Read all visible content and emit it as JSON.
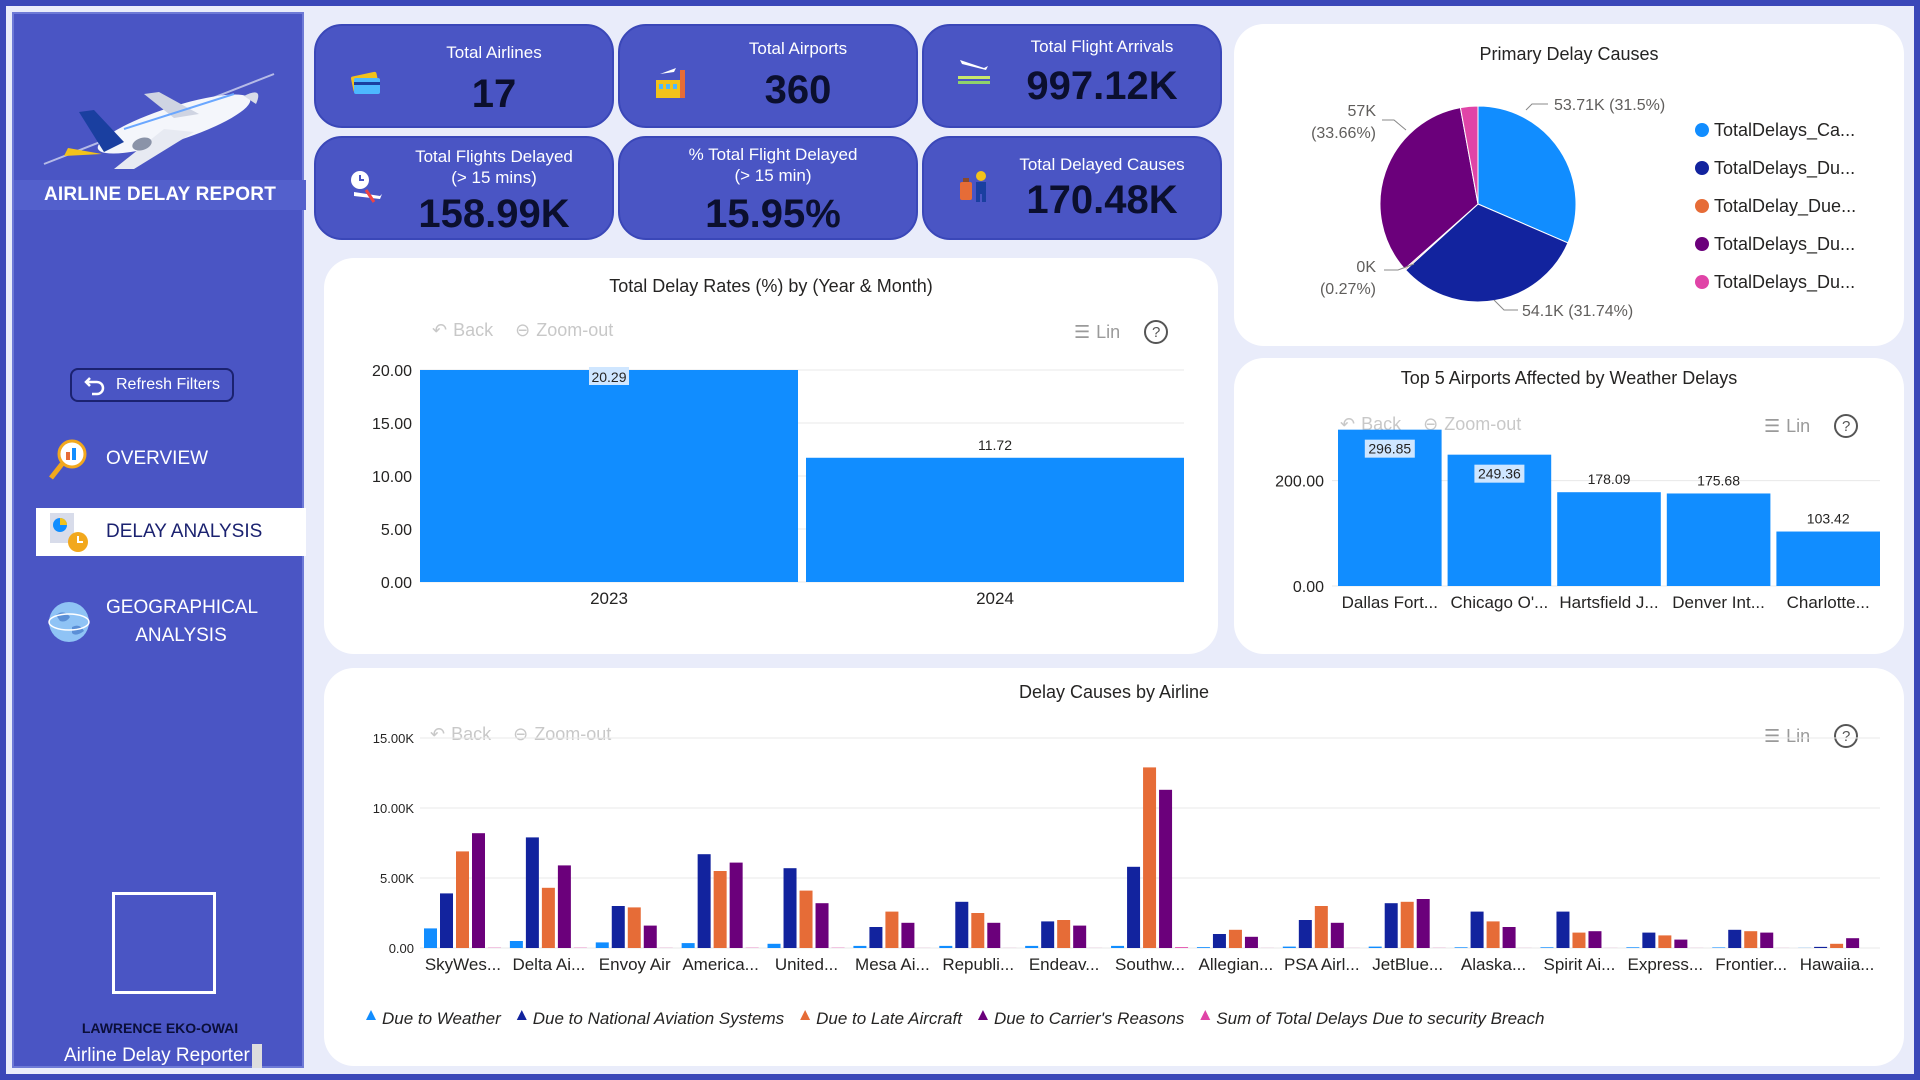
{
  "sidebar": {
    "title": "AIRLINE DELAY REPORT",
    "refresh_label": "Refresh Filters",
    "nav": [
      {
        "label": "OVERVIEW"
      },
      {
        "label": "DELAY ANALYSIS"
      },
      {
        "label": "GEOGRAPHICAL ANALYSIS"
      }
    ],
    "author_name": "LAWRENCE EKO-OWAI",
    "author_role": "Airline Delay Reporter"
  },
  "kpis": [
    {
      "label": "Total Airlines",
      "value": "17"
    },
    {
      "label": "Total Airports",
      "value": "360"
    },
    {
      "label": "Total Flight Arrivals",
      "value": "997.12K"
    },
    {
      "label": "Total Flights Delayed",
      "label2": "(> 15 mins)",
      "value": "158.99K"
    },
    {
      "label": "% Total Flight Delayed",
      "label2": "(> 15 min)",
      "value": "15.95%"
    },
    {
      "label": "Total Delayed Causes",
      "value": "170.48K"
    }
  ],
  "toolbar": {
    "back": "Back",
    "zoom": "Zoom-out",
    "lin": "Lin",
    "help": "?"
  },
  "colors": {
    "blue": "#118dff",
    "navy": "#12239e",
    "orange": "#e66c37",
    "purple": "#6b007b",
    "pink": "#e044a7"
  },
  "chart_data": [
    {
      "type": "bar",
      "title": "Total Delay Rates (%) by (Year & Month)",
      "categories": [
        "2023",
        "2024"
      ],
      "values": [
        20.29,
        11.72
      ],
      "value_labels": [
        "20.29",
        "11.72"
      ],
      "ylim": [
        0,
        20
      ],
      "yticks": [
        "0.00",
        "5.00",
        "10.00",
        "15.00",
        "20.00"
      ]
    },
    {
      "type": "pie",
      "title": "Primary Delay Causes",
      "slices": [
        {
          "legend": "TotalDelays_Ca...",
          "value": 53.71,
          "label": "53.71K (31.5%)",
          "color": "#118dff"
        },
        {
          "legend": "TotalDelays_Du...",
          "value": 54.1,
          "label": "54.1K (31.74%)",
          "color": "#12239e"
        },
        {
          "legend": "TotalDelay_Due...",
          "value": 0.4,
          "label": "0K",
          "label2": "(0.27%)",
          "color": "#e66c37"
        },
        {
          "legend": "TotalDelays_Du...",
          "value": 57.38,
          "label": "57K",
          "label2": "(33.66%)",
          "color": "#6b007b"
        },
        {
          "legend": "TotalDelays_Du...",
          "value": 4.9,
          "label": "",
          "color": "#e044a7"
        }
      ],
      "legend_position": "right"
    },
    {
      "type": "bar",
      "title": "Top 5 Airports Affected by Weather Delays",
      "categories": [
        "Dallas Fort...",
        "Chicago O'...",
        "Hartsfield J...",
        "Denver Int...",
        "Charlotte..."
      ],
      "values": [
        296.85,
        249.36,
        178.09,
        175.68,
        103.42
      ],
      "value_labels": [
        "296.85",
        "249.36",
        "178.09",
        "175.68",
        "103.42"
      ],
      "ylim": [
        0,
        300
      ],
      "yticks": [
        "0.00",
        "200.00"
      ]
    },
    {
      "type": "bar",
      "title": "Delay Causes by Airline",
      "categories": [
        "SkyWes...",
        "Delta Ai...",
        "Envoy Air",
        "America...",
        "United...",
        "Mesa Ai...",
        "Republi...",
        "Endeav...",
        "Southw...",
        "Allegian...",
        "PSA Airl...",
        "JetBlue...",
        "Alaska...",
        "Spirit Ai...",
        "Express...",
        "Frontier...",
        "Hawaiia..."
      ],
      "series": [
        {
          "name": "Due to Weather",
          "color": "#118dff",
          "values": [
            1400,
            500,
            400,
            350,
            300,
            150,
            150,
            150,
            150,
            60,
            100,
            100,
            50,
            50,
            50,
            40,
            10
          ]
        },
        {
          "name": "Due to National Aviation Systems",
          "color": "#12239e",
          "values": [
            3900,
            7900,
            3000,
            6700,
            5700,
            1500,
            3300,
            1900,
            5800,
            1000,
            2000,
            3200,
            2600,
            2600,
            1100,
            1300,
            80
          ]
        },
        {
          "name": "Due to Late Aircraft",
          "color": "#e66c37",
          "values": [
            6900,
            4300,
            2900,
            5500,
            4100,
            2600,
            2500,
            2000,
            12900,
            1300,
            3000,
            3300,
            1900,
            1100,
            900,
            1200,
            300
          ]
        },
        {
          "name": "Due to Carrier's Reasons",
          "color": "#6b007b",
          "values": [
            8200,
            5900,
            1600,
            6100,
            3200,
            1800,
            1800,
            1600,
            11300,
            800,
            1800,
            3500,
            1500,
            1200,
            600,
            1100,
            700
          ]
        },
        {
          "name": "Sum of Total Delays Due to security Breach",
          "color": "#e044a7",
          "values": [
            20,
            20,
            10,
            20,
            20,
            5,
            5,
            5,
            60,
            5,
            5,
            10,
            5,
            5,
            5,
            5,
            0
          ]
        }
      ],
      "ylim": [
        0,
        15000
      ],
      "yticks": [
        "0.00",
        "5.00K",
        "10.00K",
        "15.00K"
      ],
      "legend_position": "bottom"
    }
  ]
}
